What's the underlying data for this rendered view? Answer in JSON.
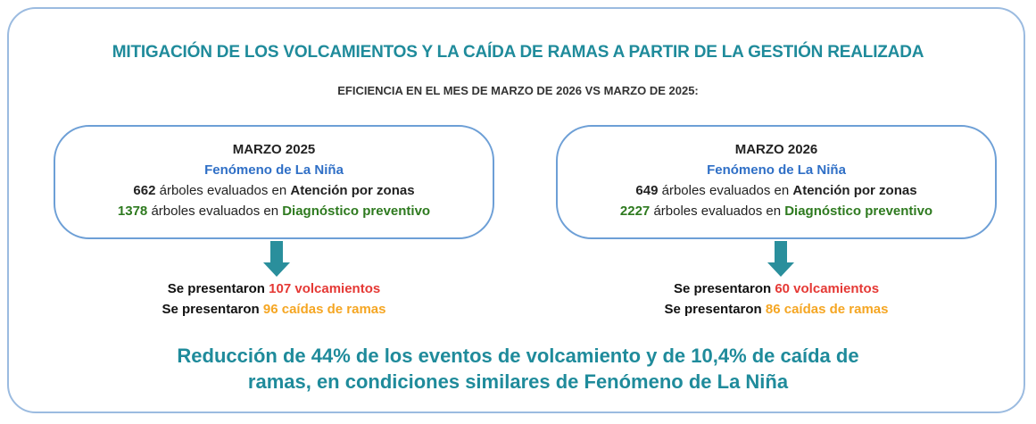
{
  "title": "MITIGACIÓN DE LOS VOLCAMIENTOS Y LA CAÍDA DE RAMAS A PARTIR DE LA GESTIÓN REALIZADA",
  "subtitle": "EFICIENCIA EN EL MES DE MARZO DE 2026 VS MARZO DE 2025:",
  "panels": [
    {
      "heading": "MARZO 2025",
      "phenomenon": "Fenómeno de La Niña",
      "lines": [
        {
          "number": 662,
          "text": "árboles evaluados en",
          "emphasis": "Atención por zonas"
        },
        {
          "number": 1378,
          "text": "árboles evaluados en",
          "emphasis": "Diagnóstico preventivo"
        }
      ],
      "results": [
        {
          "prefix": "Se presentaron",
          "highlight": "107 volcamientos"
        },
        {
          "prefix": "Se presentaron",
          "highlight": "96 caídas de ramas"
        }
      ]
    },
    {
      "heading": "MARZO 2026",
      "phenomenon": "Fenómeno de La Niña",
      "lines": [
        {
          "number": 649,
          "text": "árboles evaluados en",
          "emphasis": "Atención por zonas"
        },
        {
          "number": 2227,
          "text": "árboles evaluados en",
          "emphasis": "Diagnóstico preventivo"
        }
      ],
      "results": [
        {
          "prefix": "Se presentaron",
          "highlight": "60 volcamientos"
        },
        {
          "prefix": "Se presentaron",
          "highlight": "86 caídas de ramas"
        }
      ]
    }
  ],
  "conclusion": [
    "Reducción de 44% de los eventos de volcamiento y de 10,4% de caída de",
    "ramas, en condiciones similares de Fenómeno de La Niña"
  ]
}
